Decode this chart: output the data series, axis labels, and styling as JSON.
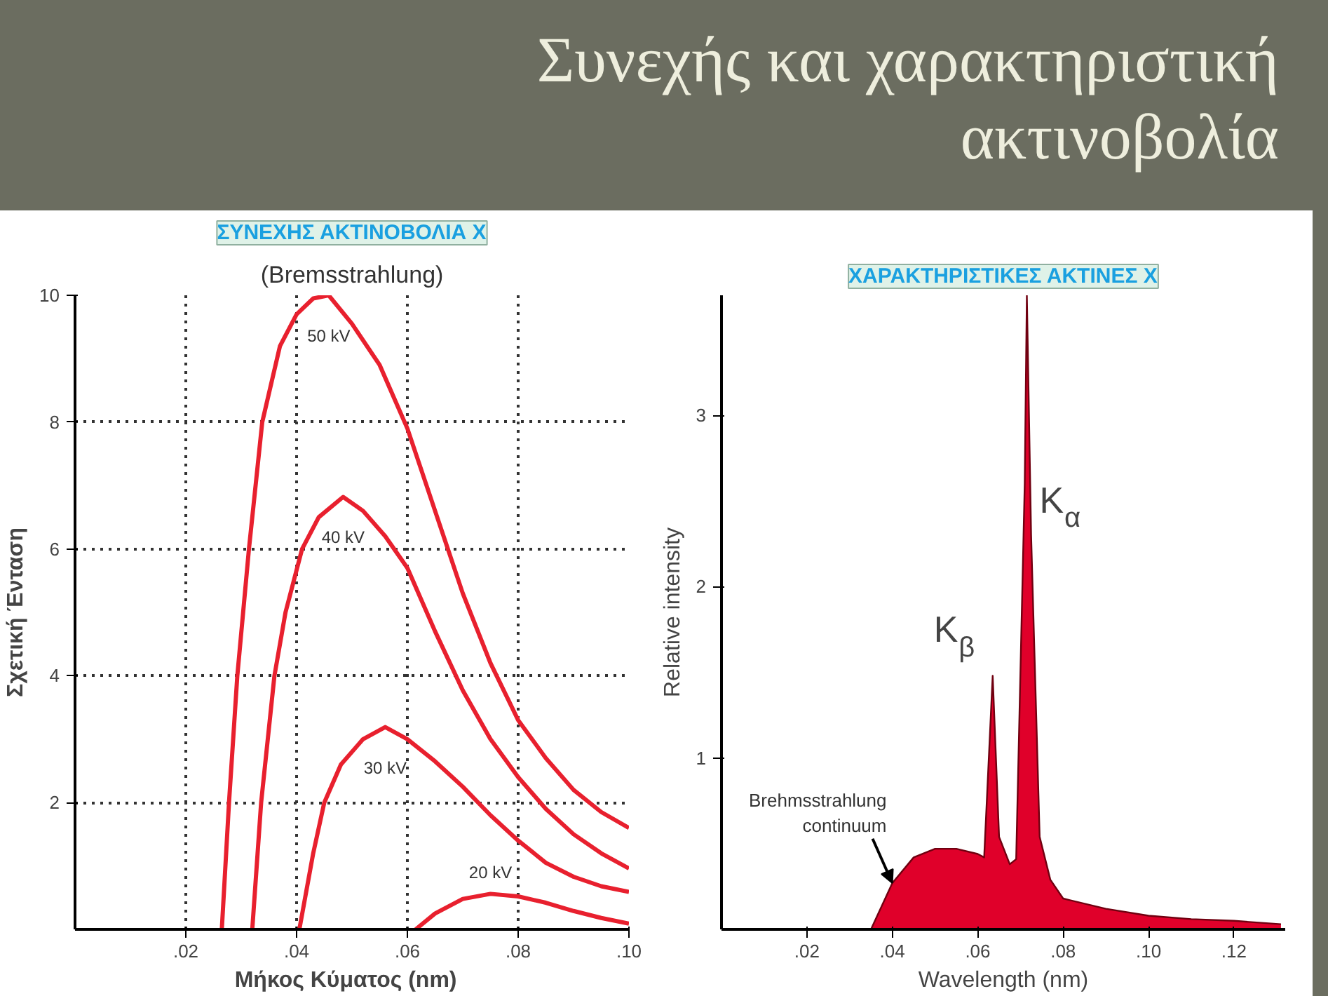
{
  "chart_data": [
    {
      "type": "other",
      "title": "Συνεχής και χαρακτηριστική ακτινοβολία"
    },
    {
      "type": "line",
      "title": "ΣΥΝΕΧΗΣ ΑΚΤΙΝΟΒΟΛΙΑ Χ",
      "annotations": [
        "(Bremsstrahlung)"
      ],
      "xlabel": "Μήκος Κύματος   (nm)",
      "ylabel": "Σχετική Ένταση",
      "series": [
        {
          "name": "50 kV",
          "color": "#e8202e",
          "x": [
            0.0265,
            0.0278,
            0.0293,
            0.0314,
            0.0338,
            0.037,
            0.04,
            0.043,
            0.0458,
            0.05,
            0.055,
            0.06,
            0.065,
            0.07,
            0.075,
            0.08,
            0.085,
            0.09,
            0.095,
            0.1
          ],
          "values": [
            0,
            2,
            4,
            6,
            8,
            9.2,
            9.7,
            9.95,
            10.0,
            9.55,
            8.9,
            7.9,
            6.6,
            5.3,
            4.2,
            3.3,
            2.7,
            2.2,
            1.85,
            1.6
          ]
        },
        {
          "name": "40 kV",
          "color": "#e8202e",
          "x": [
            0.032,
            0.0336,
            0.036,
            0.038,
            0.041,
            0.044,
            0.0484,
            0.052,
            0.056,
            0.06,
            0.065,
            0.07,
            0.075,
            0.08,
            0.085,
            0.09,
            0.095,
            0.1
          ],
          "values": [
            0,
            2,
            4,
            5.0,
            6,
            6.5,
            6.82,
            6.6,
            6.2,
            5.7,
            4.7,
            3.77,
            3.0,
            2.4,
            1.9,
            1.5,
            1.2,
            0.96
          ]
        },
        {
          "name": "30 kV",
          "color": "#e8202e",
          "x": [
            0.0405,
            0.043,
            0.045,
            0.048,
            0.052,
            0.056,
            0.06,
            0.065,
            0.07,
            0.075,
            0.08,
            0.085,
            0.09,
            0.095,
            0.1
          ],
          "values": [
            0,
            1.2,
            2,
            2.6,
            3.0,
            3.19,
            3.0,
            2.65,
            2.25,
            1.8,
            1.4,
            1.05,
            0.83,
            0.68,
            0.59
          ]
        },
        {
          "name": "20 kV",
          "color": "#e8202e",
          "x": [
            0.0615,
            0.065,
            0.07,
            0.075,
            0.08,
            0.085,
            0.09,
            0.095,
            0.1
          ],
          "values": [
            0,
            0.25,
            0.48,
            0.56,
            0.52,
            0.42,
            0.29,
            0.18,
            0.09
          ]
        }
      ],
      "xlim": [
        0,
        0.1
      ],
      "ylim": [
        0,
        10
      ],
      "xticks": [
        {
          "value": 0.02,
          "label": ".02"
        },
        {
          "value": 0.04,
          "label": ".04"
        },
        {
          "value": 0.06,
          "label": ".06"
        },
        {
          "value": 0.08,
          "label": ".08"
        },
        {
          "value": 0.1,
          "label": ".10"
        }
      ],
      "yticks": [
        2,
        4,
        6,
        8,
        10
      ],
      "grid": true
    },
    {
      "type": "area",
      "title": "ΧΑΡΑΚΤΗΡΙΣΤΙΚΕΣ ΑΚΤΙΝΕΣ Χ",
      "xlabel": "Wavelength (nm)",
      "ylabel": "Relative intensity",
      "annotations": [
        {
          "text": "K$_{α}$",
          "x": 0.0725,
          "y": 2.3
        },
        {
          "text": "K$_{β}$",
          "x": 0.0635,
          "y": 1.48
        },
        {
          "text": "Brehmsstrahlung continuum",
          "x": 0.04,
          "y": 0.27
        }
      ],
      "series": [
        {
          "color": "#e0002a",
          "x": [
            0.035,
            0.04,
            0.045,
            0.05,
            0.055,
            0.06,
            0.0615,
            0.0635,
            0.065,
            0.0675,
            0.069,
            0.071,
            0.0715,
            0.0725,
            0.0745,
            0.077,
            0.08,
            0.09,
            0.1,
            0.11,
            0.12,
            0.131
          ],
          "values": [
            0,
            0.27,
            0.42,
            0.47,
            0.47,
            0.44,
            0.42,
            1.48,
            0.54,
            0.38,
            0.41,
            2.6,
            3.7,
            2.3,
            0.54,
            0.29,
            0.18,
            0.12,
            0.08,
            0.06,
            0.05,
            0.03
          ]
        }
      ],
      "xlim": [
        0,
        0.132
      ],
      "ylim": [
        0,
        3.7
      ],
      "xticks": [
        {
          "value": 0.02,
          "label": ".02"
        },
        {
          "value": 0.04,
          "label": ".04"
        },
        {
          "value": 0.06,
          "label": ".06"
        },
        {
          "value": 0.08,
          "label": ".08"
        },
        {
          "value": 0.1,
          "label": ".10"
        },
        {
          "value": 0.12,
          "label": ".12"
        }
      ],
      "yticks": [
        1,
        2,
        3
      ],
      "grid": false
    }
  ]
}
